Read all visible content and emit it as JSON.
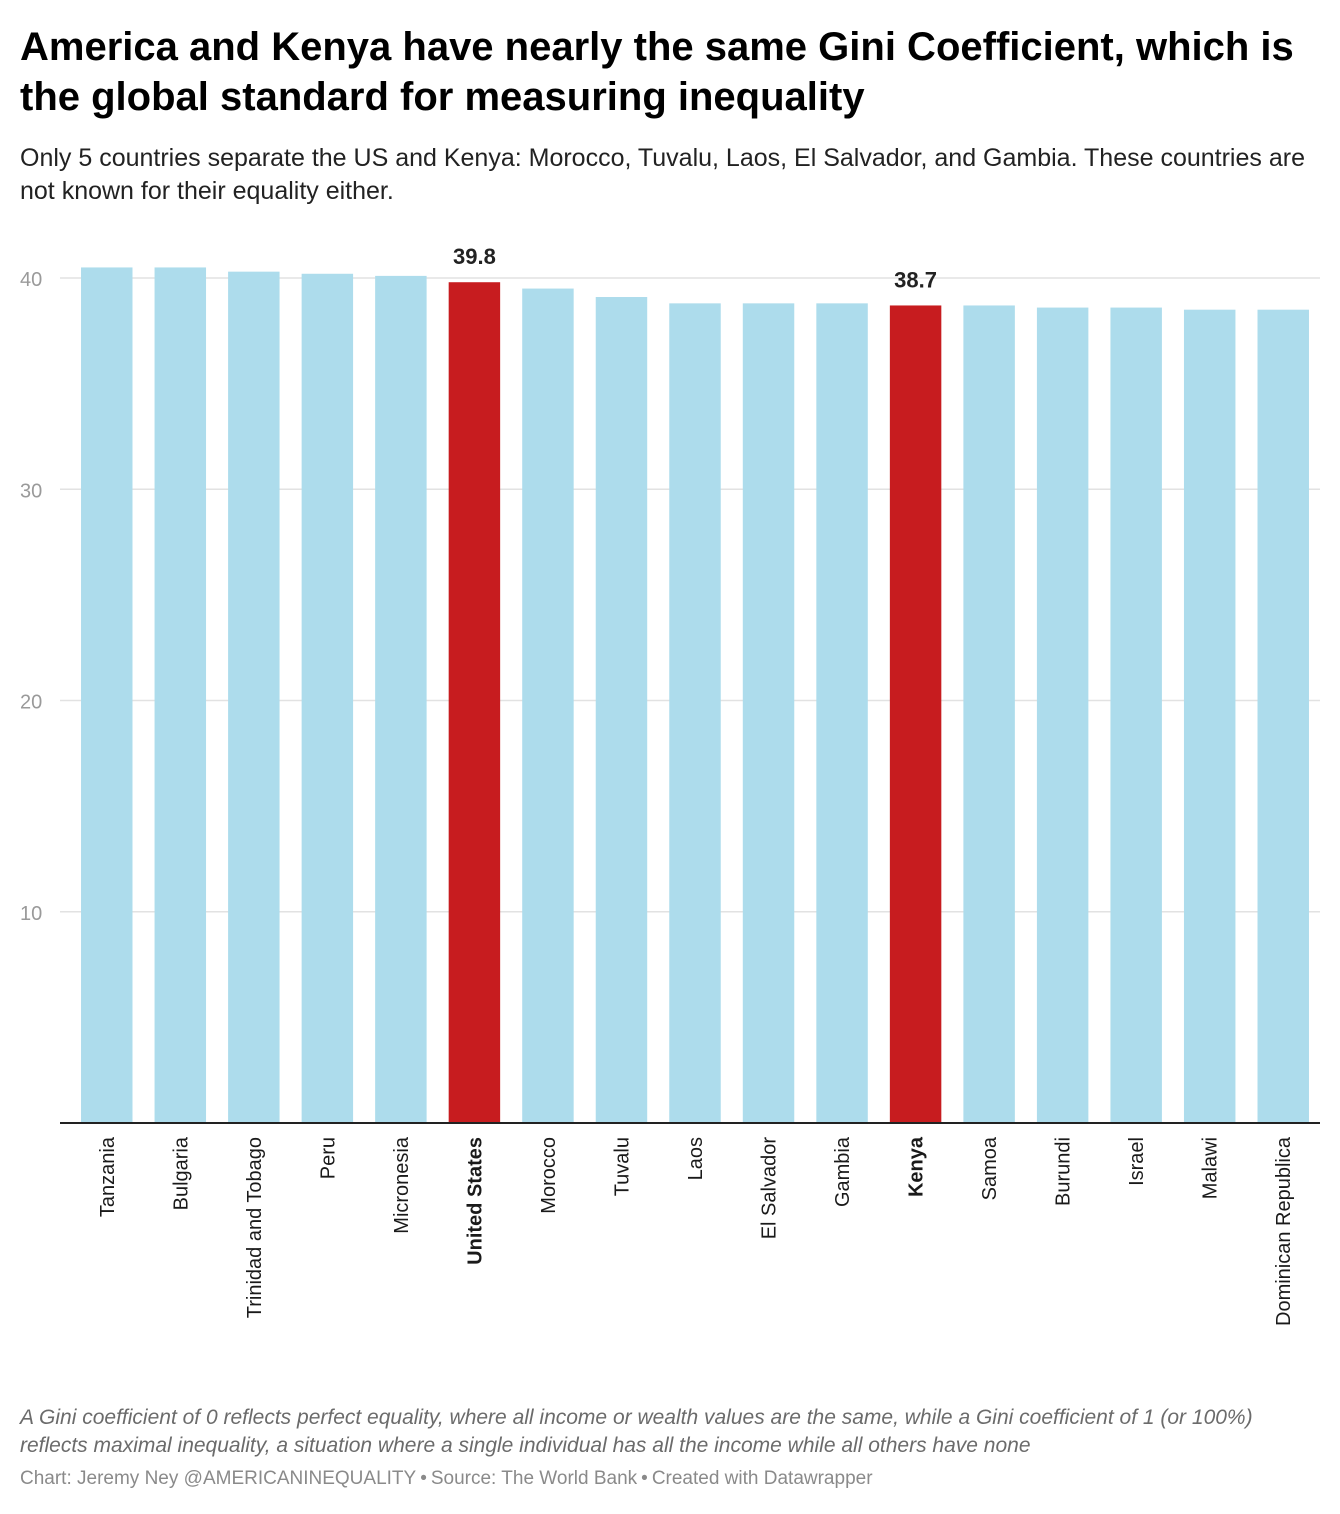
{
  "header": {
    "title": "America and Kenya have nearly the same Gini Coefficient, which is the global standard for measuring inequality",
    "subtitle": "Only 5 countries separate the US and Kenya: Morocco, Tuvalu, Laos, El Salvador, and Gambia. These countries are not known for their equality either."
  },
  "chart_data": {
    "type": "bar",
    "title": "America and Kenya have nearly the same Gini Coefficient, which is the global standard for measuring inequality",
    "xlabel": "",
    "ylabel": "",
    "ylim": [
      0,
      40
    ],
    "yticks": [
      10,
      20,
      30,
      40
    ],
    "grid": true,
    "categories": [
      "Tanzania",
      "Bulgaria",
      "Trinidad and Tobago",
      "Peru",
      "Micronesia",
      "United States",
      "Morocco",
      "Tuvalu",
      "Laos",
      "El Salvador",
      "Gambia",
      "Kenya",
      "Samoa",
      "Burundi",
      "Israel",
      "Malawi",
      "Dominican Republica"
    ],
    "values": [
      40.5,
      40.5,
      40.3,
      40.2,
      40.1,
      39.8,
      39.5,
      39.1,
      38.8,
      38.8,
      38.8,
      38.7,
      38.7,
      38.6,
      38.6,
      38.5,
      38.5
    ],
    "highlighted": [
      "United States",
      "Kenya"
    ],
    "data_labels": {
      "United States": "39.8",
      "Kenya": "38.7"
    },
    "colors": {
      "default": "#addcec",
      "highlight": "#c71c1f",
      "grid": "#e2e2e2",
      "axis": "#222222",
      "tick_text": "#9a9a9a"
    }
  },
  "footer": {
    "note": "A Gini coefficient of 0 reflects perfect equality, where all income or wealth values are the same, while a Gini coefficient of 1 (or 100%) reflects maximal inequality, a situation where a single individual has all the income while all others have none",
    "chart_credit": "Chart: Jeremy Ney @AMERICANINEQUALITY",
    "source": "Source: The World Bank",
    "tool": "Created with Datawrapper",
    "separator": "•"
  }
}
